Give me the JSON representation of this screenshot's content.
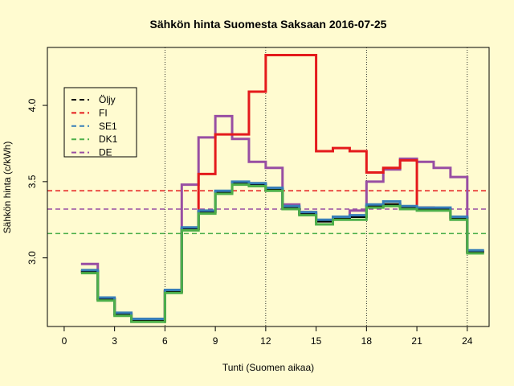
{
  "colors": {
    "background": "#fffbd0",
    "oljy": "#000000",
    "fi": "#e41a1c",
    "se1": "#377eb8",
    "dk1": "#4daf4a",
    "de": "#984ea3"
  },
  "chart_data": {
    "type": "line",
    "step": true,
    "title": "Sähkön hinta Suomesta Saksaan 2016-07-25",
    "xlabel": "Tunti (Suomen aikaa)",
    "ylabel": "Sähkön hinta (c/kWh)",
    "xlim": [
      -1,
      25.3
    ],
    "ylim": [
      2.55,
      4.38
    ],
    "x_ticks": [
      0,
      3,
      6,
      9,
      12,
      15,
      18,
      21,
      24
    ],
    "y_ticks": [
      3.0,
      3.5,
      4.0
    ],
    "y_tick_labels": [
      "3.0",
      "3.5",
      "4.0"
    ],
    "vlines": [
      6,
      12,
      18,
      24
    ],
    "grid": false,
    "legend_position": "top-left",
    "x": [
      1,
      2,
      3,
      4,
      5,
      6,
      7,
      8,
      9,
      10,
      11,
      12,
      13,
      14,
      15,
      16,
      17,
      18,
      19,
      20,
      21,
      22,
      23,
      24,
      25
    ],
    "series": [
      {
        "name": "Öljy",
        "color_key": "oljy",
        "values": [
          2.91,
          2.73,
          2.63,
          2.59,
          2.59,
          2.78,
          3.19,
          3.3,
          3.43,
          3.49,
          3.48,
          3.45,
          3.33,
          3.29,
          3.24,
          3.26,
          3.27,
          3.34,
          3.35,
          3.33,
          3.32,
          3.32,
          3.26,
          3.04,
          3.04
        ]
      },
      {
        "name": "FI",
        "color_key": "fi",
        "values": [
          2.91,
          2.73,
          2.63,
          2.59,
          2.59,
          2.78,
          3.19,
          3.55,
          3.81,
          3.81,
          4.09,
          4.33,
          4.33,
          4.33,
          3.7,
          3.72,
          3.7,
          3.56,
          3.59,
          3.64,
          3.33,
          3.32,
          3.26,
          3.04,
          3.04
        ]
      },
      {
        "name": "SE1",
        "color_key": "se1",
        "values": [
          2.92,
          2.74,
          2.64,
          2.6,
          2.6,
          2.79,
          3.2,
          3.31,
          3.44,
          3.5,
          3.49,
          3.46,
          3.34,
          3.3,
          3.25,
          3.27,
          3.28,
          3.35,
          3.37,
          3.34,
          3.33,
          3.33,
          3.27,
          3.05,
          3.05
        ]
      },
      {
        "name": "DK1",
        "color_key": "dk1",
        "values": [
          2.9,
          2.72,
          2.62,
          2.58,
          2.58,
          2.77,
          3.18,
          3.29,
          3.42,
          3.48,
          3.47,
          3.44,
          3.32,
          3.28,
          3.22,
          3.25,
          3.25,
          3.33,
          3.34,
          3.32,
          3.31,
          3.31,
          3.25,
          3.03,
          3.03
        ]
      },
      {
        "name": "DE",
        "color_key": "de",
        "values": [
          2.96,
          2.73,
          2.63,
          2.59,
          2.59,
          2.78,
          3.48,
          3.79,
          3.93,
          3.78,
          3.63,
          3.59,
          3.35,
          3.3,
          3.24,
          3.26,
          3.31,
          3.5,
          3.58,
          3.65,
          3.63,
          3.59,
          3.53,
          3.04,
          3.04
        ]
      }
    ],
    "hlines": [
      {
        "color_key": "fi",
        "y": 3.44
      },
      {
        "color_key": "de",
        "y": 3.32
      },
      {
        "color_key": "dk1",
        "y": 3.16
      }
    ]
  }
}
